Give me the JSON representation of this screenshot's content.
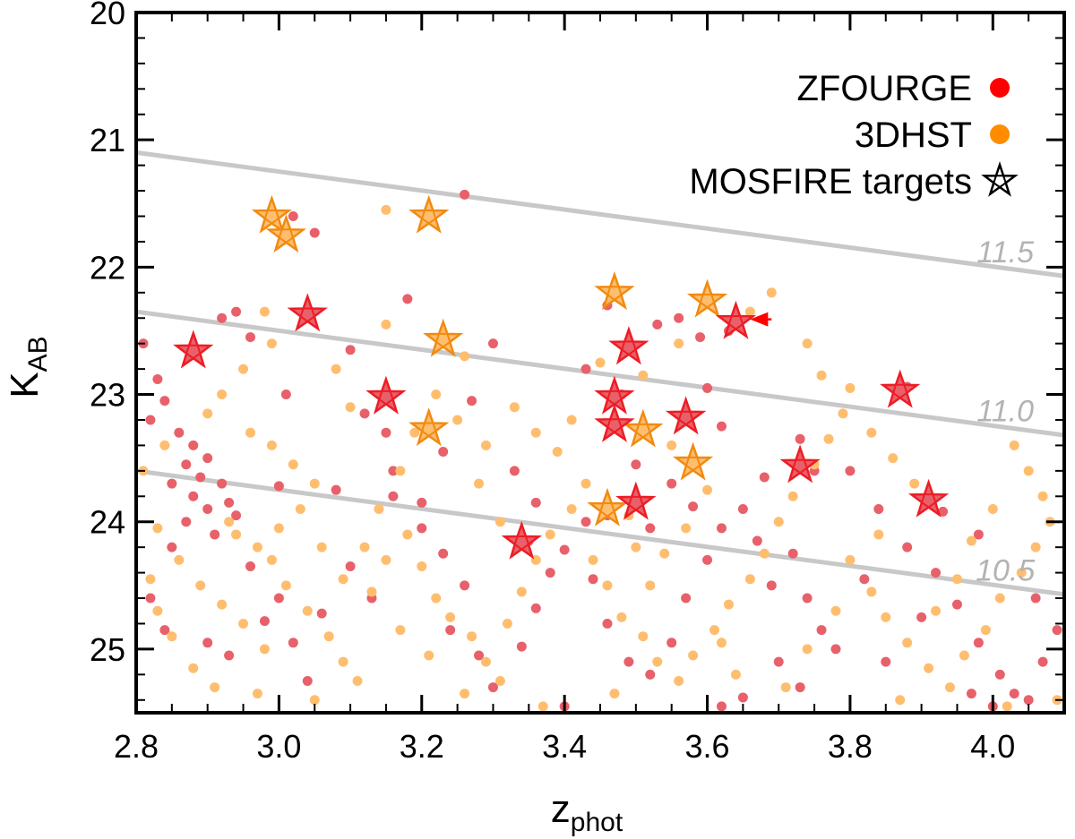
{
  "chart_data": {
    "type": "scatter",
    "xlabel": "z",
    "xlabel_sub": "phot",
    "ylabel": "K",
    "ylabel_sub": "AB",
    "xlim": [
      2.8,
      4.1
    ],
    "ylim": [
      20.0,
      25.5
    ],
    "y_inverted": true,
    "x_ticks": [
      "2.8",
      "3.0",
      "3.2",
      "3.4",
      "3.6",
      "3.8",
      "4.0"
    ],
    "y_ticks": [
      "20",
      "21",
      "22",
      "23",
      "24",
      "25"
    ],
    "grid": false,
    "legend_position": "top-right",
    "legend": [
      {
        "label": "ZFOURGE",
        "marker": "dot",
        "color": "#ff0000"
      },
      {
        "label": "3DHST",
        "marker": "dot",
        "color": "#ff8c00"
      },
      {
        "label": "MOSFIRE targets",
        "marker": "star",
        "color": "#000000"
      }
    ],
    "mass_curves": [
      {
        "label": "11.5",
        "points": [
          [
            2.8,
            21.1
          ],
          [
            4.1,
            22.07
          ]
        ]
      },
      {
        "label": "11.0",
        "points": [
          [
            2.8,
            22.35
          ],
          [
            4.1,
            23.32
          ]
        ]
      },
      {
        "label": "10.5",
        "points": [
          [
            2.8,
            23.6
          ],
          [
            4.1,
            24.57
          ]
        ]
      }
    ],
    "series": [
      {
        "name": "ZFOURGE",
        "color": "#e8606a",
        "points": [
          [
            3.02,
            21.6
          ],
          [
            3.26,
            21.43
          ],
          [
            3.05,
            21.73
          ],
          [
            3.18,
            22.25
          ],
          [
            2.92,
            22.4
          ],
          [
            2.94,
            22.35
          ],
          [
            2.81,
            22.6
          ],
          [
            2.83,
            22.88
          ],
          [
            2.84,
            23.05
          ],
          [
            2.82,
            23.2
          ],
          [
            2.86,
            23.3
          ],
          [
            2.88,
            23.4
          ],
          [
            2.9,
            23.5
          ],
          [
            2.87,
            23.55
          ],
          [
            2.85,
            23.7
          ],
          [
            2.88,
            23.8
          ],
          [
            2.9,
            23.9
          ],
          [
            2.87,
            24.0
          ],
          [
            2.92,
            23.7
          ],
          [
            2.89,
            23.65
          ],
          [
            2.93,
            23.85
          ],
          [
            2.91,
            24.1
          ],
          [
            2.94,
            23.95
          ],
          [
            2.96,
            24.35
          ],
          [
            2.85,
            24.2
          ],
          [
            2.82,
            24.6
          ],
          [
            2.84,
            24.85
          ],
          [
            2.9,
            24.95
          ],
          [
            2.93,
            25.05
          ],
          [
            2.98,
            24.78
          ],
          [
            3.0,
            24.6
          ],
          [
            3.02,
            24.95
          ],
          [
            3.04,
            25.25
          ],
          [
            3.06,
            24.72
          ],
          [
            3.1,
            24.35
          ],
          [
            3.13,
            24.6
          ],
          [
            3.08,
            23.75
          ],
          [
            3.0,
            23.72
          ],
          [
            3.01,
            23.0
          ],
          [
            2.96,
            22.55
          ],
          [
            3.16,
            23.6
          ],
          [
            3.16,
            23.8
          ],
          [
            3.2,
            24.05
          ],
          [
            3.23,
            24.25
          ],
          [
            3.26,
            24.5
          ],
          [
            3.24,
            24.85
          ],
          [
            3.28,
            25.05
          ],
          [
            3.3,
            25.3
          ],
          [
            3.34,
            24.98
          ],
          [
            3.36,
            24.68
          ],
          [
            3.38,
            24.4
          ],
          [
            3.4,
            24.22
          ],
          [
            3.43,
            24.0
          ],
          [
            3.46,
            23.95
          ],
          [
            3.44,
            24.45
          ],
          [
            3.46,
            24.8
          ],
          [
            3.49,
            25.1
          ],
          [
            3.4,
            25.45
          ],
          [
            3.52,
            25.2
          ],
          [
            3.55,
            24.95
          ],
          [
            3.57,
            24.6
          ],
          [
            3.6,
            24.3
          ],
          [
            3.62,
            24.05
          ],
          [
            3.65,
            23.9
          ],
          [
            3.67,
            24.15
          ],
          [
            3.69,
            24.5
          ],
          [
            3.72,
            24.25
          ],
          [
            3.74,
            24.6
          ],
          [
            3.76,
            24.85
          ],
          [
            3.7,
            25.1
          ],
          [
            3.73,
            25.3
          ],
          [
            3.65,
            25.38
          ],
          [
            3.55,
            23.7
          ],
          [
            3.5,
            23.55
          ],
          [
            3.48,
            23.0
          ],
          [
            3.43,
            22.8
          ],
          [
            3.46,
            22.3
          ],
          [
            3.53,
            22.45
          ],
          [
            3.56,
            22.4
          ],
          [
            3.59,
            22.55
          ],
          [
            3.63,
            22.5
          ],
          [
            3.6,
            22.95
          ],
          [
            3.62,
            23.25
          ],
          [
            3.73,
            23.35
          ],
          [
            3.8,
            23.6
          ],
          [
            3.84,
            23.9
          ],
          [
            3.88,
            24.2
          ],
          [
            3.92,
            24.4
          ],
          [
            3.95,
            24.65
          ],
          [
            3.98,
            24.95
          ],
          [
            4.01,
            25.2
          ],
          [
            4.03,
            25.35
          ],
          [
            4.05,
            25.4
          ],
          [
            4.07,
            25.1
          ],
          [
            4.09,
            24.85
          ],
          [
            4.06,
            24.6
          ],
          [
            3.98,
            24.1
          ],
          [
            3.93,
            23.92
          ],
          [
            3.88,
            22.94
          ],
          [
            3.3,
            22.6
          ],
          [
            3.27,
            23.05
          ],
          [
            3.23,
            23.45
          ],
          [
            3.2,
            23.85
          ],
          [
            3.12,
            23.15
          ],
          [
            3.1,
            22.65
          ],
          [
            3.15,
            23.3
          ],
          [
            3.33,
            23.6
          ],
          [
            3.36,
            23.85
          ],
          [
            3.35,
            24.15
          ],
          [
            3.52,
            24.05
          ],
          [
            3.58,
            23.88
          ],
          [
            3.68,
            23.65
          ],
          [
            3.75,
            23.6
          ],
          [
            3.82,
            24.45
          ],
          [
            3.9,
            24.75
          ],
          [
            3.78,
            25.0
          ],
          [
            3.97,
            25.35
          ],
          [
            4.0,
            25.45
          ],
          [
            3.85,
            25.1
          ],
          [
            3.62,
            25.45
          ]
        ]
      },
      {
        "name": "3DHST",
        "color": "#ffbd6e",
        "points": [
          [
            3.15,
            21.55
          ],
          [
            3.15,
            22.45
          ],
          [
            2.99,
            22.6
          ],
          [
            2.95,
            22.8
          ],
          [
            2.98,
            22.35
          ],
          [
            3.08,
            22.8
          ],
          [
            3.1,
            23.1
          ],
          [
            2.92,
            23.0
          ],
          [
            2.9,
            23.15
          ],
          [
            2.96,
            23.3
          ],
          [
            2.99,
            23.4
          ],
          [
            3.02,
            23.55
          ],
          [
            3.05,
            23.7
          ],
          [
            3.03,
            23.9
          ],
          [
            3.0,
            24.05
          ],
          [
            2.97,
            24.2
          ],
          [
            2.94,
            24.1
          ],
          [
            2.99,
            24.3
          ],
          [
            3.01,
            24.5
          ],
          [
            3.04,
            24.7
          ],
          [
            3.07,
            24.9
          ],
          [
            3.09,
            25.1
          ],
          [
            3.11,
            25.25
          ],
          [
            3.05,
            25.4
          ],
          [
            2.97,
            25.35
          ],
          [
            2.91,
            25.3
          ],
          [
            2.88,
            25.15
          ],
          [
            2.85,
            24.9
          ],
          [
            2.83,
            24.7
          ],
          [
            2.82,
            24.45
          ],
          [
            2.86,
            24.3
          ],
          [
            2.89,
            24.5
          ],
          [
            2.92,
            24.65
          ],
          [
            2.95,
            24.8
          ],
          [
            2.98,
            25.0
          ],
          [
            3.13,
            24.55
          ],
          [
            3.15,
            24.3
          ],
          [
            3.18,
            24.1
          ],
          [
            3.2,
            24.35
          ],
          [
            3.22,
            24.6
          ],
          [
            3.24,
            24.75
          ],
          [
            3.27,
            24.9
          ],
          [
            3.29,
            25.1
          ],
          [
            3.31,
            25.25
          ],
          [
            3.32,
            24.8
          ],
          [
            3.34,
            24.55
          ],
          [
            3.36,
            24.3
          ],
          [
            3.38,
            24.1
          ],
          [
            3.41,
            23.9
          ],
          [
            3.43,
            23.7
          ],
          [
            3.39,
            23.45
          ],
          [
            3.36,
            23.3
          ],
          [
            3.33,
            23.1
          ],
          [
            3.29,
            23.4
          ],
          [
            3.25,
            23.2
          ],
          [
            3.22,
            23.0
          ],
          [
            3.19,
            23.3
          ],
          [
            3.17,
            23.6
          ],
          [
            3.14,
            23.9
          ],
          [
            3.12,
            24.2
          ],
          [
            3.44,
            24.3
          ],
          [
            3.46,
            24.5
          ],
          [
            3.48,
            24.75
          ],
          [
            3.51,
            24.9
          ],
          [
            3.53,
            25.1
          ],
          [
            3.56,
            25.25
          ],
          [
            3.58,
            25.05
          ],
          [
            3.61,
            24.85
          ],
          [
            3.63,
            24.65
          ],
          [
            3.66,
            24.45
          ],
          [
            3.68,
            24.25
          ],
          [
            3.7,
            24.0
          ],
          [
            3.72,
            23.8
          ],
          [
            3.75,
            23.55
          ],
          [
            3.77,
            23.35
          ],
          [
            3.79,
            23.15
          ],
          [
            3.76,
            22.85
          ],
          [
            3.74,
            22.6
          ],
          [
            3.69,
            22.2
          ],
          [
            3.66,
            22.35
          ],
          [
            3.56,
            22.6
          ],
          [
            3.51,
            22.85
          ],
          [
            3.45,
            22.75
          ],
          [
            3.41,
            23.2
          ],
          [
            3.55,
            23.4
          ],
          [
            3.58,
            23.5
          ],
          [
            3.6,
            23.75
          ],
          [
            3.57,
            24.05
          ],
          [
            3.54,
            24.25
          ],
          [
            3.52,
            24.5
          ],
          [
            3.8,
            24.3
          ],
          [
            3.83,
            24.55
          ],
          [
            3.85,
            24.75
          ],
          [
            3.88,
            24.95
          ],
          [
            3.91,
            25.15
          ],
          [
            3.94,
            25.3
          ],
          [
            3.96,
            25.05
          ],
          [
            3.99,
            24.85
          ],
          [
            4.01,
            24.6
          ],
          [
            4.04,
            24.4
          ],
          [
            4.06,
            24.2
          ],
          [
            4.08,
            24.0
          ],
          [
            4.07,
            23.8
          ],
          [
            4.05,
            23.6
          ],
          [
            4.03,
            23.4
          ],
          [
            4.0,
            23.9
          ],
          [
            3.97,
            24.15
          ],
          [
            3.95,
            24.45
          ],
          [
            3.92,
            24.7
          ],
          [
            3.89,
            23.7
          ],
          [
            3.86,
            23.5
          ],
          [
            3.83,
            23.3
          ],
          [
            3.8,
            22.95
          ],
          [
            4.09,
            25.4
          ],
          [
            4.02,
            25.45
          ],
          [
            3.87,
            25.4
          ],
          [
            3.74,
            25.0
          ],
          [
            3.71,
            25.3
          ],
          [
            3.64,
            25.2
          ],
          [
            3.47,
            25.35
          ],
          [
            3.37,
            25.45
          ],
          [
            3.26,
            25.35
          ],
          [
            3.21,
            25.05
          ],
          [
            3.17,
            24.85
          ],
          [
            3.09,
            24.45
          ],
          [
            3.06,
            24.2
          ],
          [
            2.93,
            24.0
          ],
          [
            2.83,
            24.05
          ],
          [
            2.81,
            23.6
          ],
          [
            2.84,
            23.4
          ],
          [
            3.26,
            22.7
          ],
          [
            3.28,
            23.7
          ],
          [
            3.31,
            24.0
          ],
          [
            3.49,
            23.95
          ],
          [
            3.5,
            24.2
          ],
          [
            3.62,
            24.95
          ],
          [
            3.78,
            24.7
          ],
          [
            3.84,
            24.1
          ]
        ]
      }
    ],
    "mosfire_targets": [
      {
        "survey": "3DHST",
        "x": 2.99,
        "y": 21.6
      },
      {
        "survey": "3DHST",
        "x": 3.01,
        "y": 21.75
      },
      {
        "survey": "3DHST",
        "x": 3.21,
        "y": 21.6
      },
      {
        "survey": "3DHST",
        "x": 3.47,
        "y": 22.2
      },
      {
        "survey": "3DHST",
        "x": 3.6,
        "y": 22.26
      },
      {
        "survey": "3DHST",
        "x": 3.23,
        "y": 22.57
      },
      {
        "survey": "3DHST",
        "x": 3.21,
        "y": 23.27
      },
      {
        "survey": "3DHST",
        "x": 3.51,
        "y": 23.28
      },
      {
        "survey": "3DHST",
        "x": 3.58,
        "y": 23.54
      },
      {
        "survey": "3DHST",
        "x": 3.46,
        "y": 23.9
      },
      {
        "survey": "ZFOURGE",
        "x": 3.04,
        "y": 22.37
      },
      {
        "survey": "ZFOURGE",
        "x": 3.64,
        "y": 22.43
      },
      {
        "survey": "ZFOURGE",
        "x": 2.88,
        "y": 22.66
      },
      {
        "survey": "ZFOURGE",
        "x": 3.49,
        "y": 22.63
      },
      {
        "survey": "ZFOURGE",
        "x": 3.15,
        "y": 23.02
      },
      {
        "survey": "ZFOURGE",
        "x": 3.47,
        "y": 23.02
      },
      {
        "survey": "ZFOURGE",
        "x": 3.47,
        "y": 23.24
      },
      {
        "survey": "ZFOURGE",
        "x": 3.57,
        "y": 23.18
      },
      {
        "survey": "ZFOURGE",
        "x": 3.87,
        "y": 22.97
      },
      {
        "survey": "ZFOURGE",
        "x": 3.73,
        "y": 23.56
      },
      {
        "survey": "ZFOURGE",
        "x": 3.5,
        "y": 23.85
      },
      {
        "survey": "ZFOURGE",
        "x": 3.91,
        "y": 23.83
      },
      {
        "survey": "ZFOURGE",
        "x": 3.34,
        "y": 24.16
      }
    ],
    "arrow": {
      "from": [
        3.69,
        22.41
      ],
      "to": [
        3.66,
        22.41
      ],
      "color": "#ff0000"
    }
  }
}
